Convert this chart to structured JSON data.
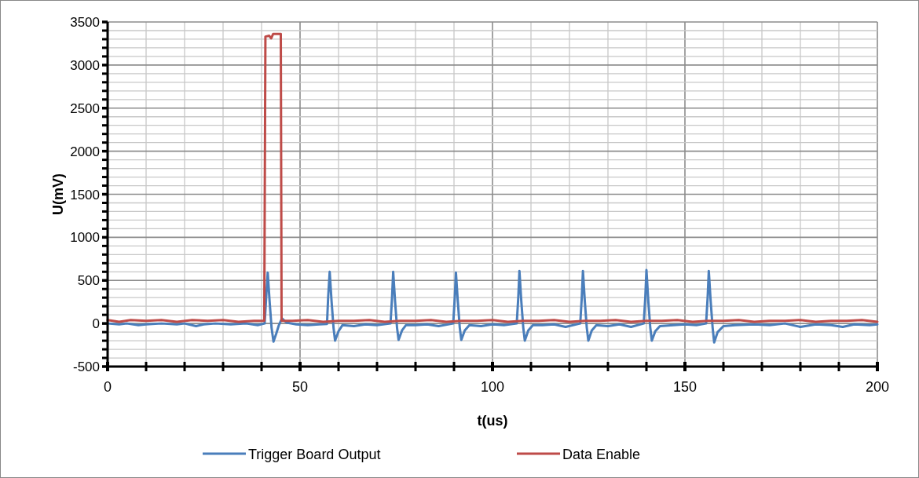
{
  "chart_data": {
    "type": "line",
    "xlabel": "t(us)",
    "ylabel": "U(mV)",
    "xlim": [
      0,
      200
    ],
    "ylim": [
      -500,
      3500
    ],
    "xticks": [
      0,
      {
        "value": 10,
        "label": null
      },
      {
        "value": 20,
        "label": null
      },
      {
        "value": 30,
        "label": null
      },
      {
        "value": 40,
        "label": null
      },
      50,
      {
        "value": 60,
        "label": null
      },
      {
        "value": 70,
        "label": null
      },
      {
        "value": 80,
        "label": null
      },
      {
        "value": 90,
        "label": null
      },
      100,
      {
        "value": 110,
        "label": null
      },
      {
        "value": 120,
        "label": null
      },
      {
        "value": 130,
        "label": null
      },
      {
        "value": 140,
        "label": null
      },
      150,
      {
        "value": 160,
        "label": null
      },
      {
        "value": 170,
        "label": null
      },
      {
        "value": 180,
        "label": null
      },
      {
        "value": 190,
        "label": null
      },
      200
    ],
    "yticks": [
      -500,
      {
        "value": -400,
        "label": null
      },
      {
        "value": -300,
        "label": null
      },
      {
        "value": -200,
        "label": null
      },
      {
        "value": -100,
        "label": null
      },
      0,
      {
        "value": 100,
        "label": null
      },
      {
        "value": 200,
        "label": null
      },
      {
        "value": 300,
        "label": null
      },
      {
        "value": 400,
        "label": null
      },
      500,
      {
        "value": 600,
        "label": null
      },
      {
        "value": 700,
        "label": null
      },
      {
        "value": 800,
        "label": null
      },
      {
        "value": 900,
        "label": null
      },
      1000,
      {
        "value": 1100,
        "label": null
      },
      {
        "value": 1200,
        "label": null
      },
      {
        "value": 1300,
        "label": null
      },
      {
        "value": 1400,
        "label": null
      },
      1500,
      {
        "value": 1600,
        "label": null
      },
      {
        "value": 1700,
        "label": null
      },
      {
        "value": 1800,
        "label": null
      },
      {
        "value": 1900,
        "label": null
      },
      2000,
      {
        "value": 2100,
        "label": null
      },
      {
        "value": 2200,
        "label": null
      },
      {
        "value": 2300,
        "label": null
      },
      {
        "value": 2400,
        "label": null
      },
      2500,
      {
        "value": 2600,
        "label": null
      },
      {
        "value": 2700,
        "label": null
      },
      {
        "value": 2800,
        "label": null
      },
      {
        "value": 2900,
        "label": null
      },
      3000,
      {
        "value": 3100,
        "label": null
      },
      {
        "value": 3200,
        "label": null
      },
      {
        "value": 3300,
        "label": null
      },
      {
        "value": 3400,
        "label": null
      },
      3500
    ],
    "grid": true,
    "legend": "bottom",
    "marker": "none",
    "line_style": "solid",
    "series": [
      {
        "name": "Trigger Board Output",
        "color": "#4a7ebb",
        "x": [
          0,
          3,
          5,
          8,
          10,
          14,
          18,
          20,
          23,
          25,
          28,
          32,
          36,
          39,
          40.8,
          41.2,
          41.6,
          42.1,
          42.6,
          43.1,
          43.8,
          44.5,
          45.3,
          46.5,
          49,
          52,
          55,
          57,
          57.3,
          57.7,
          58.2,
          58.7,
          59.1,
          60,
          61,
          64,
          67,
          70,
          73.5,
          73.9,
          74.2,
          74.7,
          75.2,
          75.6,
          76.5,
          77.5,
          80,
          83,
          86,
          89.8,
          90.2,
          90.5,
          91,
          91.5,
          91.9,
          92.8,
          94,
          97,
          100,
          103,
          106.3,
          106.7,
          107,
          107.5,
          108,
          108.4,
          109.3,
          110.5,
          113,
          116,
          119,
          122.8,
          123.2,
          123.5,
          124,
          124.5,
          124.9,
          125.8,
          127,
          130,
          133,
          136,
          139.3,
          139.7,
          140,
          140.5,
          141,
          141.4,
          142.3,
          143.5,
          147,
          150,
          153,
          155.5,
          155.9,
          156.2,
          156.7,
          157.2,
          157.6,
          158.5,
          160,
          163,
          168,
          172,
          176,
          180,
          184,
          188,
          191,
          194,
          198,
          200
        ],
        "values": [
          0,
          -10,
          0,
          -20,
          -10,
          0,
          -10,
          0,
          -30,
          -10,
          0,
          -10,
          0,
          -20,
          0,
          300,
          590,
          250,
          -50,
          -210,
          -120,
          -20,
          60,
          10,
          -10,
          -20,
          -10,
          -5,
          300,
          600,
          250,
          -50,
          -200,
          -90,
          -20,
          -30,
          -10,
          -20,
          0,
          300,
          600,
          250,
          -50,
          -190,
          -80,
          -20,
          -20,
          -10,
          -30,
          0,
          300,
          590,
          250,
          -50,
          -190,
          -80,
          -20,
          -30,
          -10,
          -20,
          0,
          300,
          610,
          250,
          -50,
          -200,
          -80,
          -20,
          -20,
          -10,
          -40,
          0,
          300,
          610,
          250,
          -50,
          -200,
          -80,
          -20,
          -30,
          -10,
          -40,
          0,
          300,
          620,
          250,
          -50,
          -200,
          -90,
          -30,
          -20,
          -10,
          -20,
          0,
          300,
          610,
          250,
          -50,
          -220,
          -100,
          -30,
          -20,
          -10,
          -20,
          0,
          -40,
          -10,
          -20,
          -40,
          -10,
          -20,
          -10
        ]
      },
      {
        "name": "Data Enable",
        "color": "#be4b48",
        "x": [
          0,
          3,
          6,
          10,
          14,
          18,
          22,
          26,
          30,
          34,
          38,
          40.7,
          41,
          42,
          42.5,
          43,
          45,
          45.2,
          48,
          52,
          56,
          60,
          64,
          68,
          72,
          76,
          80,
          84,
          88,
          92,
          96,
          100,
          104,
          108,
          112,
          116,
          120,
          124,
          128,
          132,
          136,
          140,
          144,
          148,
          152,
          156,
          160,
          164,
          168,
          172,
          176,
          180,
          184,
          188,
          192,
          196,
          200
        ],
        "values": [
          40,
          20,
          40,
          30,
          40,
          20,
          40,
          30,
          40,
          20,
          30,
          30,
          3330,
          3340,
          3310,
          3360,
          3360,
          30,
          30,
          40,
          20,
          30,
          30,
          40,
          20,
          30,
          30,
          40,
          20,
          30,
          30,
          40,
          20,
          30,
          30,
          40,
          20,
          30,
          30,
          40,
          20,
          30,
          30,
          40,
          20,
          30,
          30,
          40,
          20,
          30,
          30,
          40,
          20,
          30,
          30,
          40,
          20
        ]
      }
    ]
  }
}
